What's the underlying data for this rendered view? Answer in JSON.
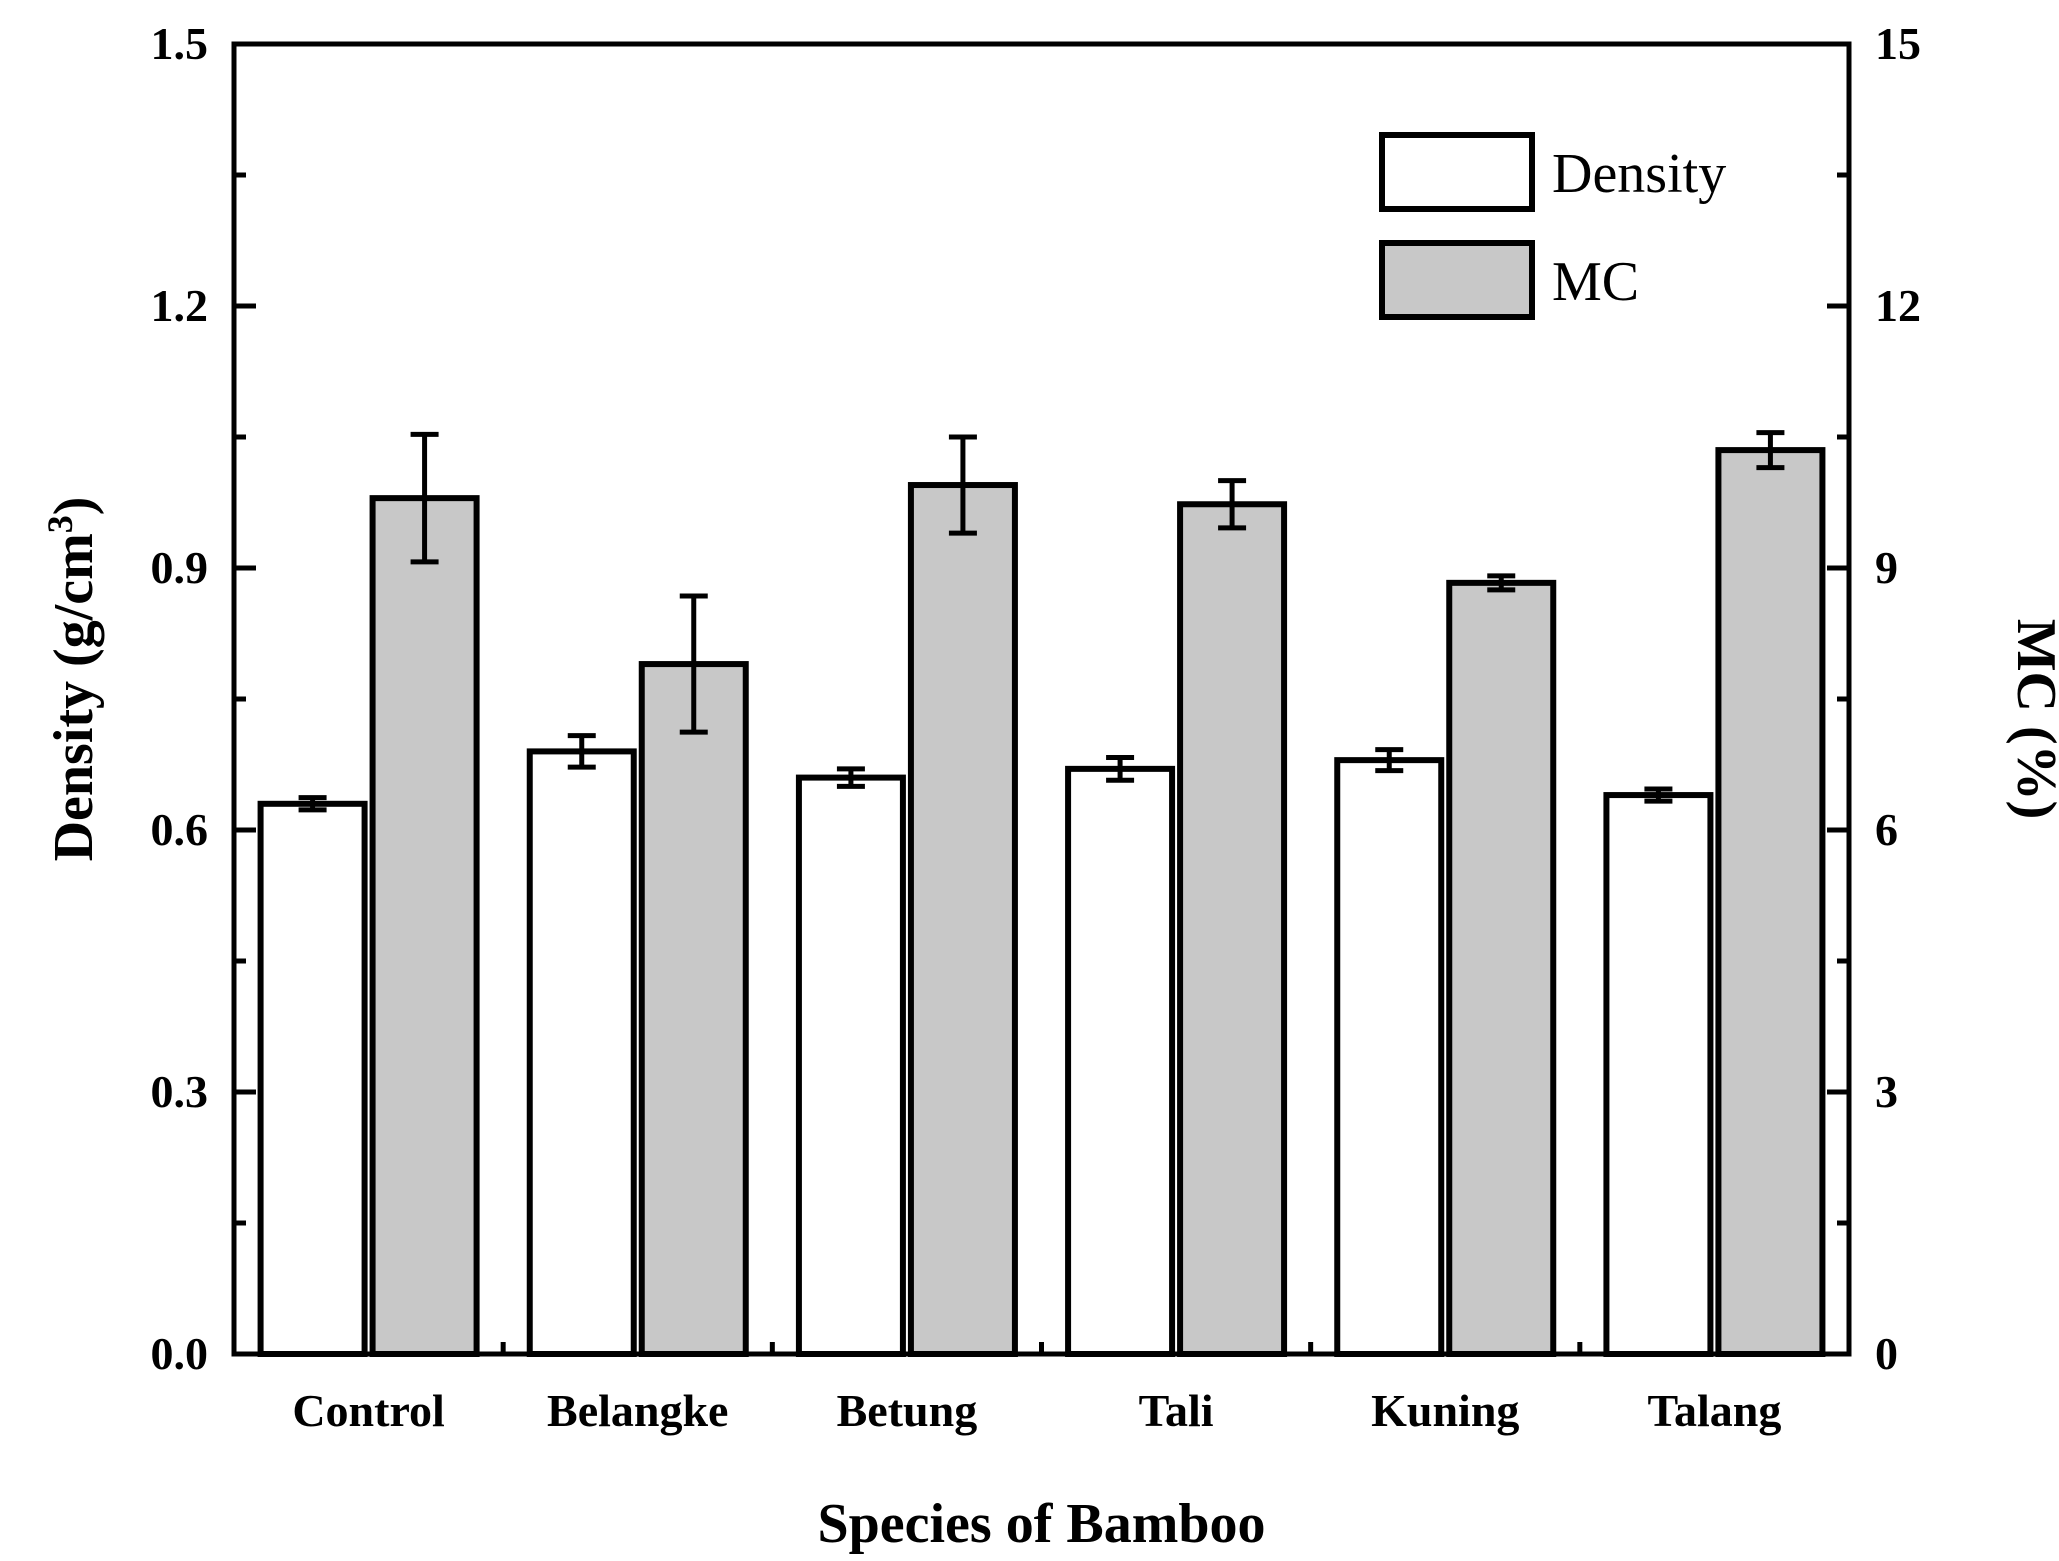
{
  "chart_data": {
    "type": "bar",
    "categories": [
      "Control",
      "Belangke",
      "Betung",
      "Tali",
      "Kuning",
      "Talang"
    ],
    "series": [
      {
        "name": "Density",
        "axis": "left",
        "color": "#ffffff",
        "values": [
          0.63,
          0.69,
          0.66,
          0.67,
          0.68,
          0.64
        ],
        "errors": [
          0.007,
          0.018,
          0.01,
          0.013,
          0.012,
          0.007
        ]
      },
      {
        "name": "MC",
        "axis": "right",
        "color": "#c8c8c8",
        "values": [
          9.8,
          7.9,
          9.95,
          9.73,
          8.83,
          10.35
        ],
        "errors": [
          0.73,
          0.78,
          0.55,
          0.27,
          0.08,
          0.2
        ]
      }
    ],
    "xlabel": "Species of Bamboo",
    "ylabel_left": "Density (g/cm",
    "ylabel_left_sup": "3",
    "ylabel_left_close": ")",
    "ylabel_right": "MC (%)",
    "ylim_left": [
      0,
      1.5
    ],
    "yticks_left": [
      "0.0",
      "0.3",
      "0.6",
      "0.9",
      "1.2",
      "1.5"
    ],
    "ylim_right": [
      0,
      15
    ],
    "yticks_right": [
      "0",
      "3",
      "6",
      "9",
      "12",
      "15"
    ],
    "legend_position": "top-right",
    "grid": false
  }
}
